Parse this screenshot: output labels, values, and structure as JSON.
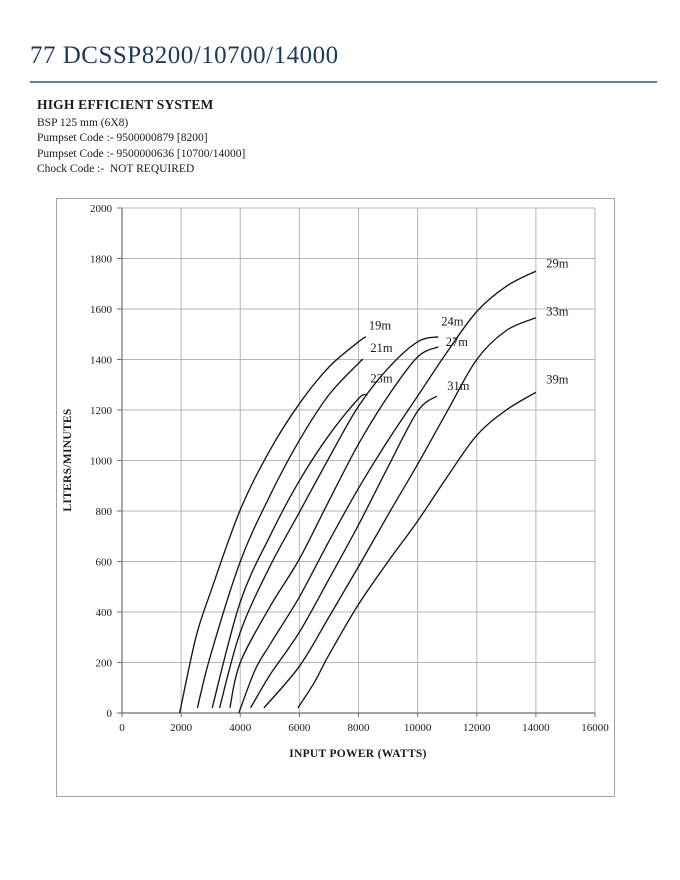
{
  "page": {
    "title": "77 DCSSP8200/10700/14000",
    "subtitle": "HIGH EFFICIENT SYSTEM",
    "details": [
      "BSP 125 mm (6X8)",
      "Pumpset Code :- 9500000879 [8200]",
      "Pumpset Code :- 9500000636 [10700/14000]",
      "Chock Code :-  NOT REQUIRED"
    ],
    "title_color": "#1e3a5f",
    "rule_color": "#5b7fa6"
  },
  "chart_data": {
    "type": "line",
    "title": "",
    "xlabel": "INPUT POWER (WATTS)",
    "ylabel": "LITERS/MINUTES",
    "xlim": [
      0,
      16000
    ],
    "xstep": 2000,
    "ylim": [
      0,
      2000
    ],
    "ystep": 200,
    "grid": true,
    "legend_position": "inline-labels",
    "grid_color": "#b5b5b5",
    "axis_color": "#6e6e6e",
    "curve_color": "#161616",
    "series": [
      {
        "name": "19m",
        "label_at": [
          8350,
          1535
        ],
        "points": [
          [
            1950,
            0
          ],
          [
            2500,
            300
          ],
          [
            3000,
            480
          ],
          [
            4000,
            805
          ],
          [
            5000,
            1040
          ],
          [
            6000,
            1225
          ],
          [
            7000,
            1370
          ],
          [
            8000,
            1470
          ],
          [
            8250,
            1490
          ]
        ]
      },
      {
        "name": "21m",
        "label_at": [
          8400,
          1445
        ],
        "points": [
          [
            2550,
            20
          ],
          [
            3000,
            230
          ],
          [
            4000,
            600
          ],
          [
            5000,
            860
          ],
          [
            6000,
            1080
          ],
          [
            7000,
            1260
          ],
          [
            8000,
            1385
          ],
          [
            8150,
            1400
          ]
        ]
      },
      {
        "name": "23m",
        "label_at": [
          8400,
          1325
        ],
        "points": [
          [
            3050,
            20
          ],
          [
            4000,
            440
          ],
          [
            5000,
            700
          ],
          [
            6000,
            920
          ],
          [
            7000,
            1100
          ],
          [
            8000,
            1245
          ],
          [
            8300,
            1260
          ]
        ]
      },
      {
        "name": "24m",
        "label_at": [
          10800,
          1550
        ],
        "points": [
          [
            3300,
            20
          ],
          [
            4000,
            320
          ],
          [
            5000,
            580
          ],
          [
            6000,
            795
          ],
          [
            7000,
            1010
          ],
          [
            8000,
            1215
          ],
          [
            9000,
            1365
          ],
          [
            10000,
            1470
          ],
          [
            10700,
            1490
          ]
        ]
      },
      {
        "name": "27m",
        "label_at": [
          10950,
          1470
        ],
        "points": [
          [
            3650,
            20
          ],
          [
            4000,
            200
          ],
          [
            5000,
            420
          ],
          [
            6000,
            610
          ],
          [
            7000,
            840
          ],
          [
            8000,
            1065
          ],
          [
            9000,
            1255
          ],
          [
            10000,
            1410
          ],
          [
            10700,
            1450
          ]
        ]
      },
      {
        "name": "29m",
        "label_at": [
          14350,
          1780
        ],
        "points": [
          [
            3950,
            0
          ],
          [
            4500,
            170
          ],
          [
            5000,
            270
          ],
          [
            6000,
            460
          ],
          [
            7000,
            680
          ],
          [
            8000,
            890
          ],
          [
            9000,
            1080
          ],
          [
            10000,
            1255
          ],
          [
            11000,
            1430
          ],
          [
            12000,
            1590
          ],
          [
            13000,
            1690
          ],
          [
            14000,
            1750
          ]
        ]
      },
      {
        "name": "31m",
        "label_at": [
          11000,
          1295
        ],
        "points": [
          [
            4350,
            20
          ],
          [
            5000,
            150
          ],
          [
            6000,
            320
          ],
          [
            7000,
            530
          ],
          [
            8000,
            745
          ],
          [
            9000,
            975
          ],
          [
            10000,
            1195
          ],
          [
            10650,
            1255
          ]
        ]
      },
      {
        "name": "33m",
        "label_at": [
          14350,
          1590
        ],
        "points": [
          [
            4800,
            20
          ],
          [
            6000,
            185
          ],
          [
            7000,
            380
          ],
          [
            8000,
            580
          ],
          [
            9000,
            785
          ],
          [
            10000,
            985
          ],
          [
            11000,
            1195
          ],
          [
            12000,
            1400
          ],
          [
            13000,
            1515
          ],
          [
            14000,
            1565
          ]
        ]
      },
      {
        "name": "39m",
        "label_at": [
          14350,
          1320
        ],
        "points": [
          [
            5950,
            20
          ],
          [
            6500,
            120
          ],
          [
            7000,
            230
          ],
          [
            8000,
            430
          ],
          [
            9000,
            600
          ],
          [
            10000,
            760
          ],
          [
            11000,
            935
          ],
          [
            12000,
            1100
          ],
          [
            13000,
            1200
          ],
          [
            14000,
            1270
          ]
        ]
      }
    ]
  }
}
